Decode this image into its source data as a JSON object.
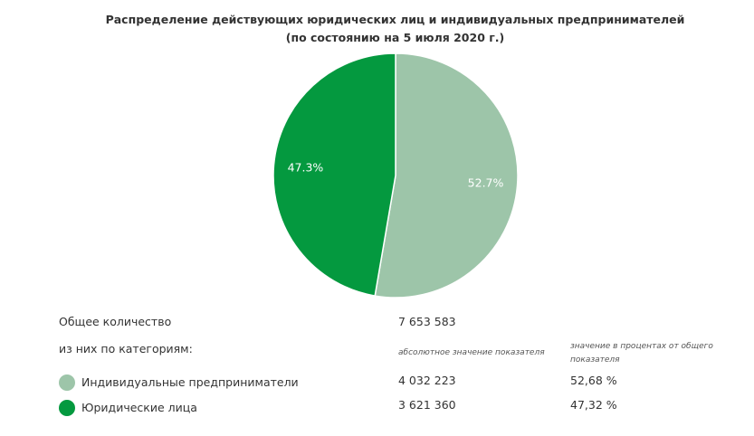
{
  "chart_data": {
    "type": "pie",
    "title": "Распределение действующих юридических лиц и индивидуальных предпринимателей",
    "subtitle": "(по состоянию на 5 июля 2020 г.)",
    "slices": [
      {
        "label": "Индивидуальные предприниматели",
        "value": 52.7,
        "display": "52.7%",
        "color": "#9dc5a9"
      },
      {
        "label": "Юридические лица",
        "value": 47.3,
        "display": "47.3%",
        "color": "#04993f"
      }
    ]
  },
  "table": {
    "total_label": "Общее количество",
    "total_value": "7 653 583",
    "categories_label": "из них по категориям:",
    "abs_header": "абсолютное значение показателя",
    "pct_header": "значение в процентах от общего показателя",
    "rows": [
      {
        "name": "Индивидуальные предприниматели",
        "abs": "4 032 223",
        "pct": "52,68 %",
        "color": "#9dc5a9"
      },
      {
        "name": "Юридические лица",
        "abs": "3 621 360",
        "pct": "47,32 %",
        "color": "#04993f"
      }
    ]
  }
}
